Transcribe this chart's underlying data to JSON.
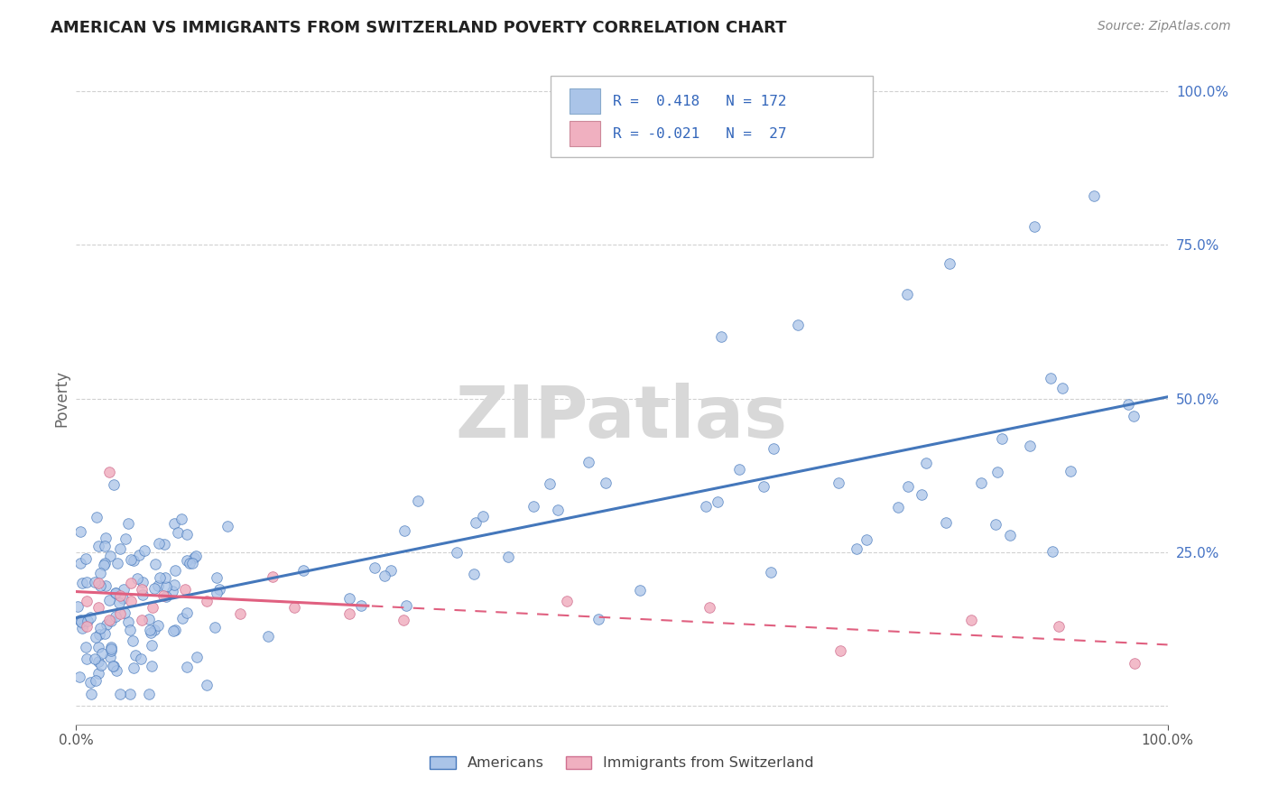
{
  "title": "AMERICAN VS IMMIGRANTS FROM SWITZERLAND POVERTY CORRELATION CHART",
  "source": "Source: ZipAtlas.com",
  "ylabel": "Poverty",
  "background_color": "#ffffff",
  "grid_color": "#cccccc",
  "watermark_text": "ZIPatlas",
  "scatter_american_color": "#aac4e8",
  "scatter_swiss_color": "#f0b0c0",
  "line_american_color": "#4477bb",
  "line_swiss_color": "#e06080",
  "legend_box_american": "#aac4e8",
  "legend_box_swiss": "#f0b0c0",
  "xlim": [
    0.0,
    1.0
  ],
  "ylim": [
    -0.03,
    1.03
  ]
}
